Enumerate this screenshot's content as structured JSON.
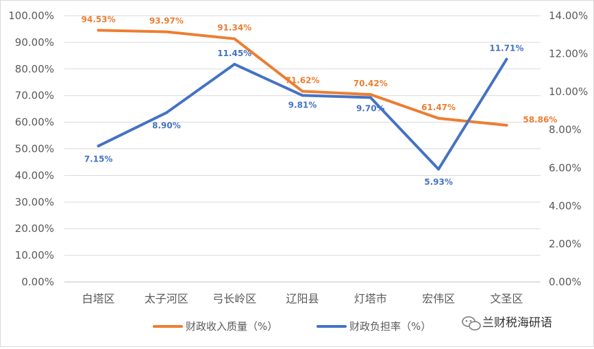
{
  "chart_data": {
    "type": "line",
    "categories": [
      "白塔区",
      "太子河区",
      "弓长岭区",
      "辽阳县",
      "灯塔市",
      "宏伟区",
      "文圣区"
    ],
    "series": [
      {
        "name": "财政收入质量（%）",
        "axis": "left",
        "color": "#ED7D31",
        "values": [
          94.53,
          93.97,
          91.34,
          71.62,
          70.42,
          61.47,
          58.86
        ],
        "labels": [
          "94.53%",
          "93.97%",
          "91.34%",
          "71.62%",
          "70.42%",
          "61.47%",
          "58.86%"
        ]
      },
      {
        "name": "财政负担率（%）",
        "axis": "right",
        "color": "#4472C4",
        "values": [
          7.15,
          8.9,
          11.45,
          9.81,
          9.7,
          5.93,
          11.71
        ],
        "labels": [
          "7.15%",
          "8.90%",
          "11.45%",
          "9.81%",
          "9.70%",
          "5.93%",
          "11.71%"
        ]
      }
    ],
    "y_left": {
      "ylim": [
        0,
        100
      ],
      "ticks": [
        "0.00%",
        "10.00%",
        "20.00%",
        "30.00%",
        "40.00%",
        "50.00%",
        "60.00%",
        "70.00%",
        "80.00%",
        "90.00%",
        "100.00%"
      ]
    },
    "y_right": {
      "ylim": [
        0,
        14
      ],
      "ticks": [
        "0.00%",
        "2.00%",
        "4.00%",
        "6.00%",
        "8.00%",
        "10.00%",
        "12.00%",
        "14.00%"
      ]
    },
    "grid": true,
    "legend_position": "bottom"
  },
  "watermark": {
    "text": "兰财税海研语",
    "icon": "wechat-icon"
  }
}
